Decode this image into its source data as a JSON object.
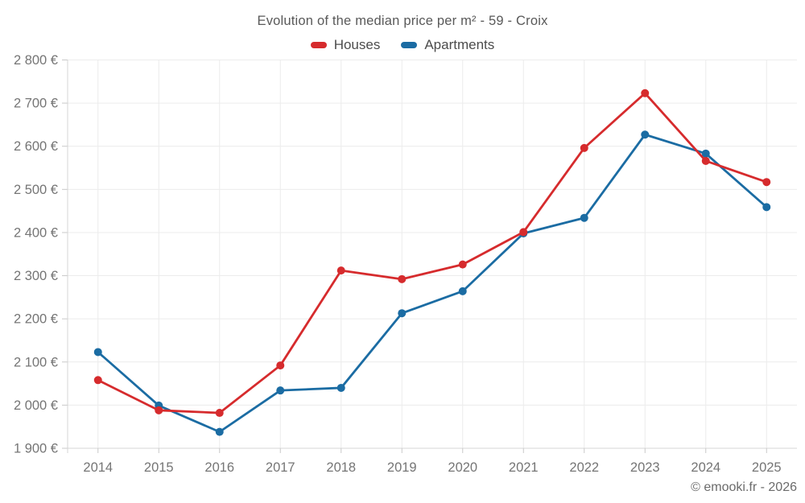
{
  "title": "Evolution of the median price per m² - 59 - Croix",
  "attribution": "© emooki.fr - 2026",
  "colors": {
    "houses": "#d62b2d",
    "apartments": "#1b6ca3",
    "grid": "#ececec",
    "axis_line": "#d6d6d6",
    "tick": "#c9c9c9",
    "axis_text": "#757575",
    "title_text": "#595959",
    "legend_text": "#4c4c4c",
    "background": "#ffffff"
  },
  "legend": {
    "items": [
      {
        "label": "Houses",
        "color": "#d62b2d"
      },
      {
        "label": "Apartments",
        "color": "#1b6ca3"
      }
    ]
  },
  "chart_data": {
    "type": "line",
    "title": "Evolution of the median price per m² - 59 - Croix",
    "categories": [
      "2014",
      "2015",
      "2016",
      "2017",
      "2018",
      "2019",
      "2020",
      "2021",
      "2022",
      "2023",
      "2024",
      "2025"
    ],
    "series": [
      {
        "name": "Houses",
        "color": "#d62b2d",
        "values": [
          2058,
          1988,
          1982,
          2092,
          2312,
          2292,
          2326,
          2401,
          2596,
          2723,
          2566,
          2517
        ]
      },
      {
        "name": "Apartments",
        "color": "#1b6ca3",
        "values": [
          2123,
          1999,
          1938,
          2034,
          2040,
          2213,
          2264,
          2398,
          2434,
          2627,
          2583,
          2459
        ]
      }
    ],
    "ylim": [
      1900,
      2800
    ],
    "ytick_step": 100,
    "ytick_labels": [
      "1 900 €",
      "2 000 €",
      "2 100 €",
      "2 200 €",
      "2 300 €",
      "2 400 €",
      "2 500 €",
      "2 600 €",
      "2 700 €",
      "2 800 €"
    ],
    "xlabel": "",
    "ylabel": "",
    "grid": true,
    "legend_position": "top",
    "marker": "circle"
  }
}
